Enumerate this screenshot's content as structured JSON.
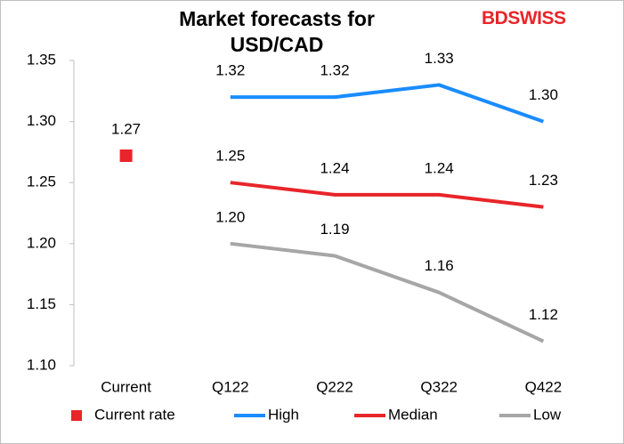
{
  "logo": "BDSWISS",
  "chart_data": {
    "type": "line",
    "title": "Market forecasts for USD/CAD",
    "categories": [
      "Current",
      "Q122",
      "Q222",
      "Q322",
      "Q422"
    ],
    "series": [
      {
        "name": "Current rate",
        "color": "#e8252a",
        "marker": "square",
        "values": [
          1.272,
          null,
          null,
          null,
          null
        ],
        "value_labels": [
          "1.27",
          null,
          null,
          null,
          null
        ]
      },
      {
        "name": "High",
        "color": "#1a8cff",
        "values": [
          null,
          1.32,
          1.32,
          1.33,
          1.3
        ],
        "value_labels": [
          null,
          "1.32",
          "1.32",
          "1.33",
          "1.30"
        ]
      },
      {
        "name": "Median",
        "color": "#e8252a",
        "values": [
          null,
          1.25,
          1.24,
          1.24,
          1.23
        ],
        "value_labels": [
          null,
          "1.25",
          "1.24",
          "1.24",
          "1.23"
        ]
      },
      {
        "name": "Low",
        "color": "#a6a6a6",
        "values": [
          null,
          1.2,
          1.19,
          1.16,
          1.12
        ],
        "value_labels": [
          null,
          "1.20",
          "1.19",
          "1.16",
          "1.12"
        ]
      }
    ],
    "ylim": [
      1.1,
      1.35
    ],
    "yticks": [
      {
        "value": 1.1,
        "label": "1.10"
      },
      1.15,
      {
        "value": 1.2,
        "label": "1.20"
      },
      1.25,
      {
        "value": 1.3,
        "label": "1.30"
      },
      1.35
    ],
    "grid": false,
    "legend": "bottom"
  }
}
